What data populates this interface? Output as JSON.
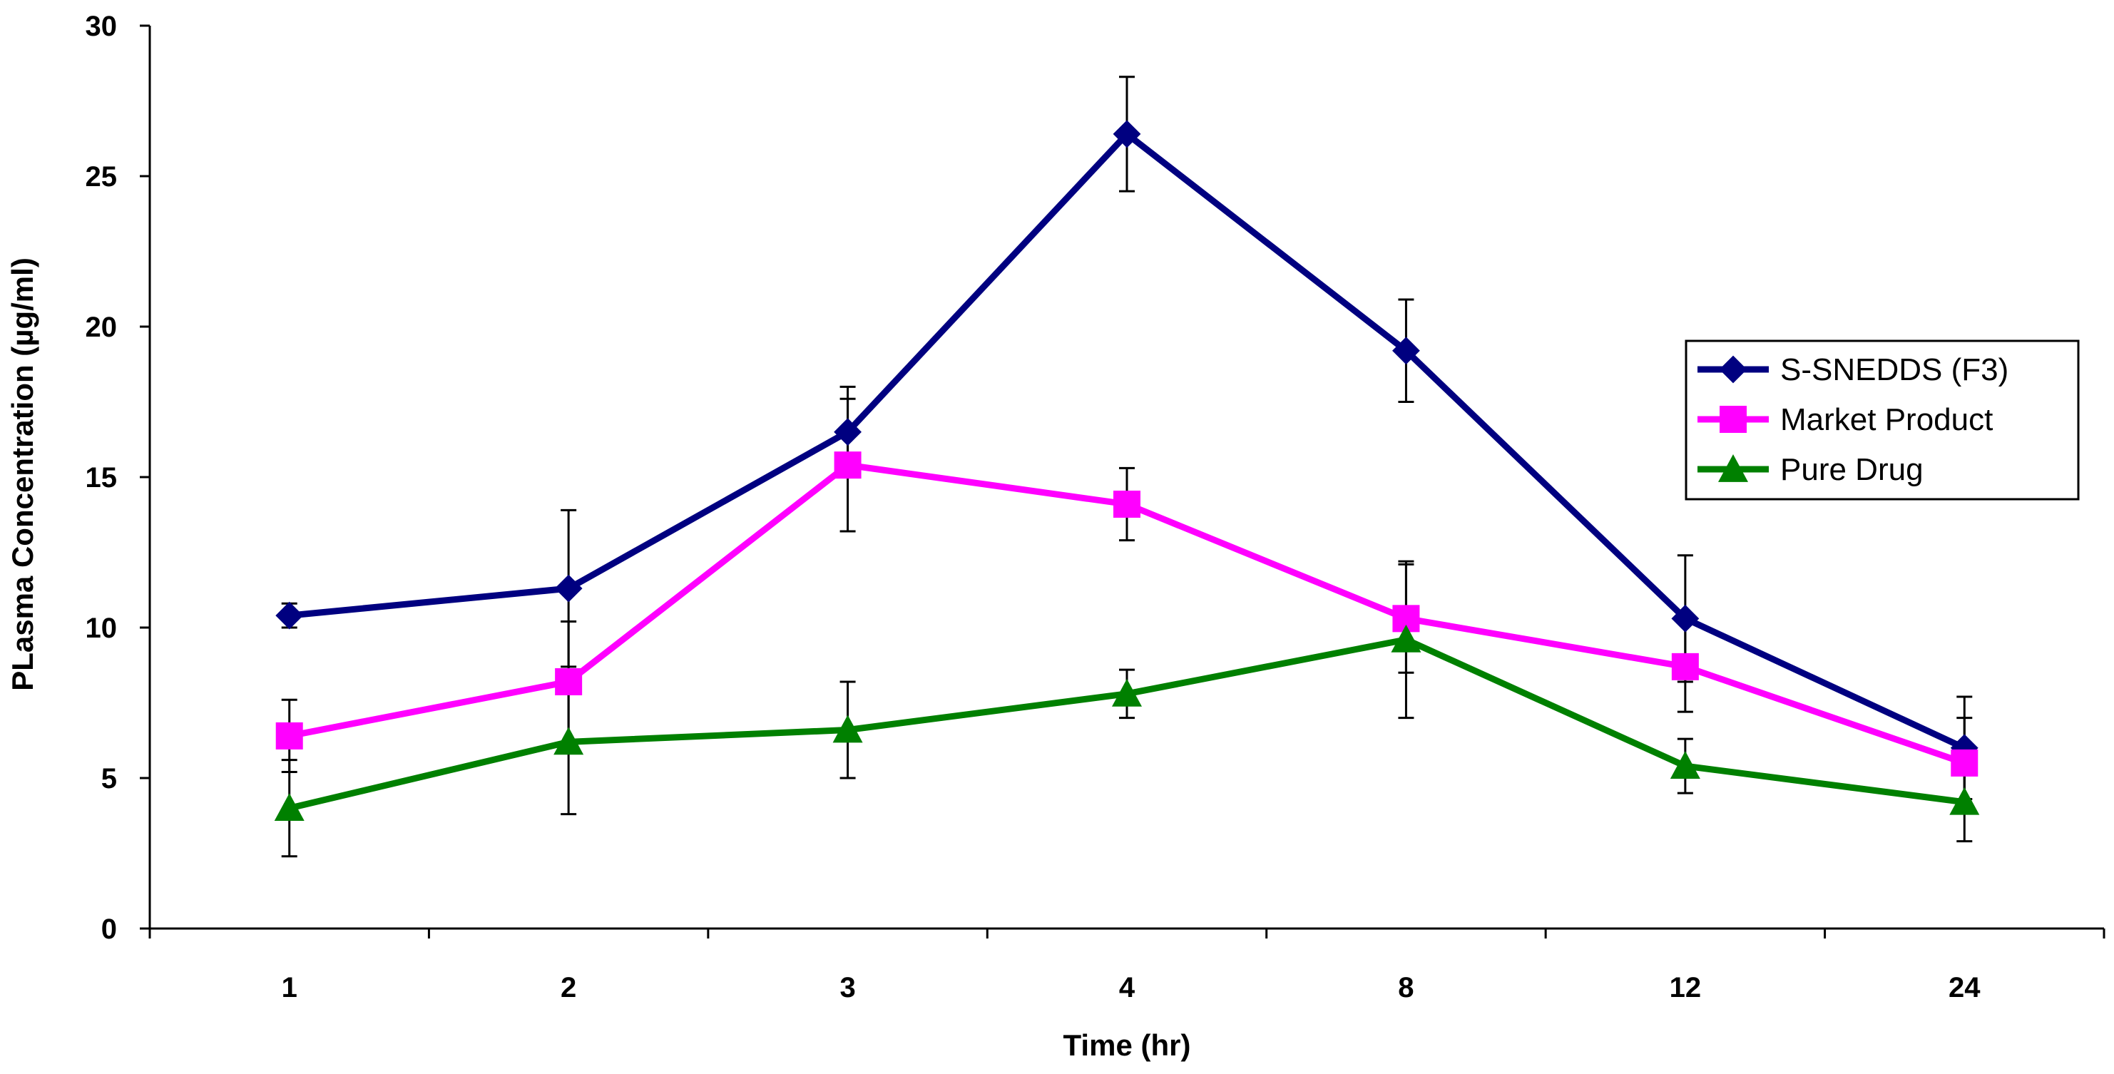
{
  "chart_data": {
    "type": "line",
    "title": "",
    "xlabel": "Time (hr)",
    "ylabel": "PLasma Concentration (µg/ml)",
    "categories": [
      "1",
      "2",
      "3",
      "4",
      "8",
      "12",
      "24"
    ],
    "ylim": [
      0,
      30
    ],
    "yticks": [
      "0",
      "5",
      "10",
      "15",
      "20",
      "25",
      "30"
    ],
    "grid": false,
    "legend_position": "right",
    "series": [
      {
        "name": "S-SNEDDS (F3)",
        "color": "#000080",
        "marker": "diamond",
        "values": [
          10.4,
          11.3,
          16.5,
          26.4,
          19.2,
          10.3,
          6.0
        ],
        "error": [
          0.4,
          2.6,
          1.5,
          1.9,
          1.7,
          2.1,
          1.7
        ]
      },
      {
        "name": "Market Product",
        "color": "#ff00ff",
        "marker": "square",
        "values": [
          6.4,
          8.2,
          15.4,
          14.1,
          10.3,
          8.7,
          5.5
        ],
        "error": [
          1.2,
          2.0,
          2.2,
          1.2,
          1.8,
          1.5,
          1.5
        ]
      },
      {
        "name": "Pure Drug",
        "color": "#008000",
        "marker": "triangle",
        "values": [
          4.0,
          6.2,
          6.6,
          7.8,
          9.6,
          5.4,
          4.2
        ],
        "error": [
          1.6,
          2.4,
          1.6,
          0.8,
          2.6,
          0.9,
          1.3
        ]
      }
    ]
  }
}
